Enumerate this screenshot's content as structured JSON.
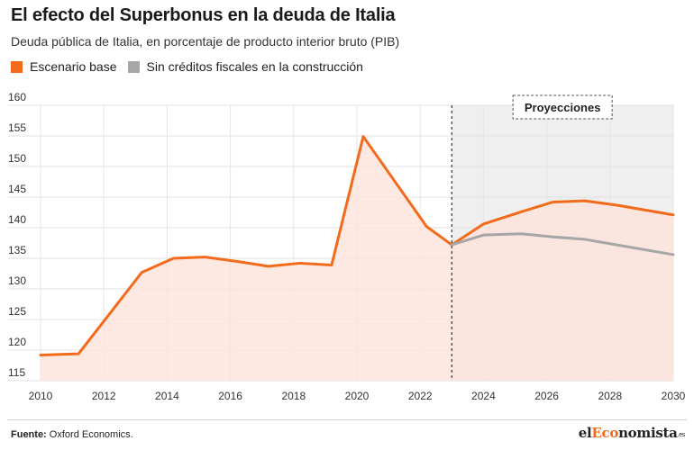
{
  "header": {
    "title": "El efecto del Superbonus en la deuda de Italia",
    "subtitle": "Deuda pública de Italia, en porcentaje de producto interior bruto (PIB)"
  },
  "legend": {
    "items": [
      {
        "label": "Escenario base",
        "color": "#f26a1b"
      },
      {
        "label": "Sin créditos fiscales en la construcción",
        "color": "#a6a6a6"
      }
    ]
  },
  "chart_data": {
    "type": "line",
    "title": "El efecto del Superbonus en la deuda de Italia",
    "subtitle": "Deuda pública de Italia, en porcentaje de producto interior bruto (PIB)",
    "xlabel": "",
    "ylabel": "",
    "xlim": [
      2010,
      2030
    ],
    "ylim": [
      115,
      160
    ],
    "x_ticks": [
      2010,
      2012,
      2014,
      2016,
      2018,
      2020,
      2022,
      2024,
      2026,
      2028,
      2030
    ],
    "y_ticks": [
      115,
      120,
      125,
      130,
      135,
      140,
      145,
      150,
      155,
      160
    ],
    "grid": true,
    "legend_position": "top-left",
    "projection": {
      "label": "Proyecciones",
      "start": 2023,
      "end": 2030
    },
    "series": [
      {
        "name": "Escenario base",
        "color": "#f26a1b",
        "area_fill": "#fde3d8",
        "x": [
          2010,
          2011.2,
          2013.2,
          2014.2,
          2015.2,
          2016.2,
          2017.2,
          2018.2,
          2019.2,
          2020.2,
          2022.2,
          2023,
          2024,
          2025.2,
          2026.2,
          2027.2,
          2028.2,
          2030
        ],
        "y": [
          119.2,
          119.4,
          132.7,
          135.0,
          135.2,
          134.5,
          133.7,
          134.2,
          133.9,
          154.9,
          140.2,
          137.2,
          140.6,
          142.6,
          144.2,
          144.4,
          143.7,
          142.1
        ]
      },
      {
        "name": "Sin créditos fiscales en la construcción",
        "color": "#a6a6a6",
        "x": [
          2023,
          2024,
          2025.2,
          2026.2,
          2027.2,
          2028.2,
          2030
        ],
        "y": [
          137.2,
          138.8,
          139.0,
          138.5,
          138.1,
          137.2,
          135.6
        ]
      }
    ]
  },
  "footer": {
    "source_label": "Fuente:",
    "source_text": "Oxford Economics.",
    "brand_prefix": "el",
    "brand_accent": "Eco",
    "brand_rest": "nomista",
    "brand_suffix": ".es"
  }
}
